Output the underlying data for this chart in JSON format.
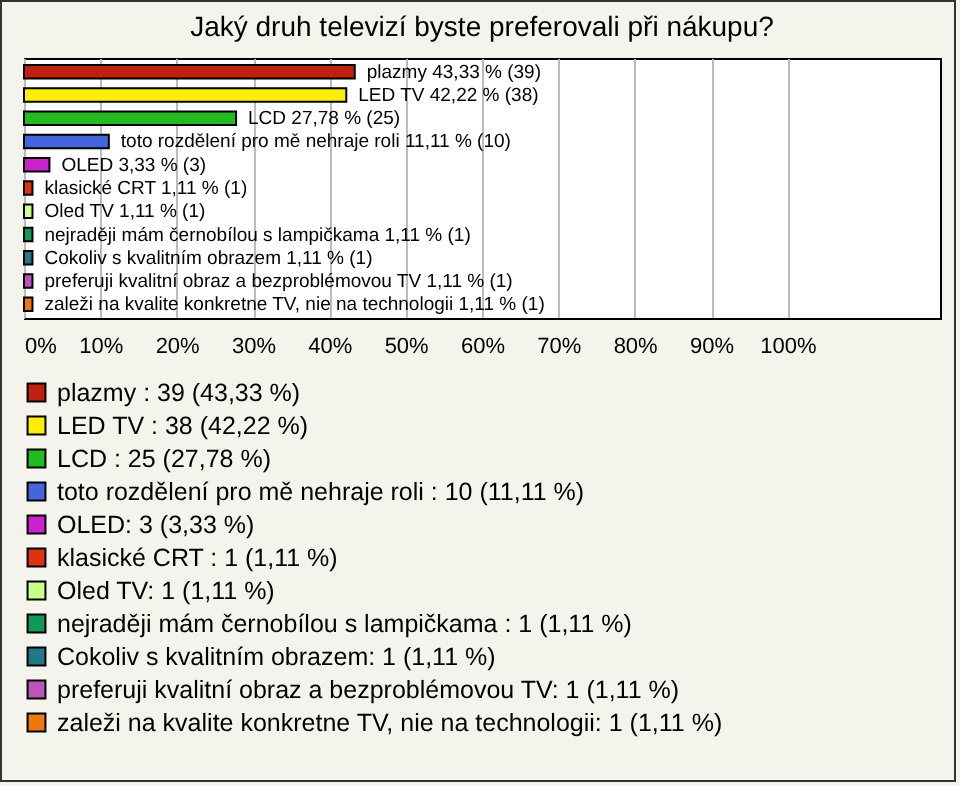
{
  "chart_data": {
    "type": "bar",
    "orientation": "horizontal",
    "title": "Jaký druh televizí byste preferovali při nákupu?",
    "categories": [
      null,
      null,
      null,
      null,
      null,
      null,
      null,
      null,
      null,
      null,
      null
    ],
    "series": [
      {
        "name": "plazmy : 39 (43,33 %)",
        "color": "#c0200f",
        "values": [
          43.33,
          null,
          null,
          null,
          null,
          null,
          null,
          null,
          null,
          null,
          null
        ],
        "value_labels": [
          "plazmy  43,33 % (39)",
          null,
          null,
          null,
          null,
          null,
          null,
          null,
          null,
          null,
          null
        ]
      },
      {
        "name": "LED TV : 38 (42,22 %)",
        "color": "#ffee00",
        "values": [
          null,
          42.22,
          null,
          null,
          null,
          null,
          null,
          null,
          null,
          null,
          null
        ],
        "value_labels": [
          null,
          "LED TV  42,22 % (38)",
          null,
          null,
          null,
          null,
          null,
          null,
          null,
          null,
          null
        ]
      },
      {
        "name": "LCD : 25 (27,78 %)",
        "color": "#22bb22",
        "values": [
          null,
          null,
          27.78,
          null,
          null,
          null,
          null,
          null,
          null,
          null,
          null
        ],
        "value_labels": [
          null,
          null,
          "LCD  27,78 % (25)",
          null,
          null,
          null,
          null,
          null,
          null,
          null,
          null
        ]
      },
      {
        "name": "toto rozdělení pro mě nehraje roli : 10 (11,11 %)",
        "color": "#4466dd",
        "values": [
          null,
          null,
          null,
          11.11,
          null,
          null,
          null,
          null,
          null,
          null,
          null
        ],
        "value_labels": [
          null,
          null,
          null,
          "toto rozdělení pro mě nehraje roli  11,11 % (10)",
          null,
          null,
          null,
          null,
          null,
          null,
          null
        ]
      },
      {
        "name": "OLED: 3 (3,33 %)",
        "color": "#cc22cc",
        "values": [
          null,
          null,
          null,
          null,
          3.33,
          null,
          null,
          null,
          null,
          null,
          null
        ],
        "value_labels": [
          null,
          null,
          null,
          null,
          "OLED 3,33 % (3)",
          null,
          null,
          null,
          null,
          null,
          null
        ]
      },
      {
        "name": "klasické CRT : 1 (1,11 %)",
        "color": "#dd3311",
        "values": [
          null,
          null,
          null,
          null,
          null,
          1.11,
          null,
          null,
          null,
          null,
          null
        ],
        "value_labels": [
          null,
          null,
          null,
          null,
          null,
          "klasické CRT  1,11 % (1)",
          null,
          null,
          null,
          null,
          null
        ]
      },
      {
        "name": "Oled TV: 1 (1,11 %)",
        "color": "#ccff88",
        "values": [
          null,
          null,
          null,
          null,
          null,
          null,
          1.11,
          null,
          null,
          null,
          null
        ],
        "value_labels": [
          null,
          null,
          null,
          null,
          null,
          null,
          "Oled TV 1,11 % (1)",
          null,
          null,
          null,
          null
        ]
      },
      {
        "name": "nejraději mám černobílou s lampičkama : 1 (1,11 %)",
        "color": "#119955",
        "values": [
          null,
          null,
          null,
          null,
          null,
          null,
          null,
          1.11,
          null,
          null,
          null
        ],
        "value_labels": [
          null,
          null,
          null,
          null,
          null,
          null,
          null,
          "nejraději mám černobílou s lampičkama  1,11 % (1)",
          null,
          null,
          null
        ]
      },
      {
        "name": "Cokoliv s kvalitním obrazem: 1 (1,11 %)",
        "color": "#227788",
        "values": [
          null,
          null,
          null,
          null,
          null,
          null,
          null,
          null,
          1.11,
          null,
          null
        ],
        "value_labels": [
          null,
          null,
          null,
          null,
          null,
          null,
          null,
          null,
          "Cokoliv s kvalitním obrazem 1,11 % (1)",
          null,
          null
        ]
      },
      {
        "name": "preferuji kvalitní obraz a bezproblémovou TV: 1 (1,11 %)",
        "color": "#bb55bb",
        "values": [
          null,
          null,
          null,
          null,
          null,
          null,
          null,
          null,
          null,
          1.11,
          null
        ],
        "value_labels": [
          null,
          null,
          null,
          null,
          null,
          null,
          null,
          null,
          null,
          "preferuji kvalitní obraz a bezproblémovou TV 1,11 % (1)",
          null
        ]
      },
      {
        "name": "zaleži na kvalite konkretne TV, nie na technologii: 1 (1,11 %)",
        "color": "#ee7711",
        "values": [
          null,
          null,
          null,
          null,
          null,
          null,
          null,
          null,
          null,
          null,
          1.11
        ],
        "value_labels": [
          null,
          null,
          null,
          null,
          null,
          null,
          null,
          null,
          null,
          null,
          "zaleži na kvalite konkretne TV, nie na technologii 1,11 % (1)"
        ]
      }
    ],
    "xlim": [
      0,
      120
    ],
    "xticks": [
      {
        "value": 0,
        "label": "0%"
      },
      {
        "value": 10,
        "label": "10%"
      },
      {
        "value": 20,
        "label": "20%"
      },
      {
        "value": 30,
        "label": "30%"
      },
      {
        "value": 40,
        "label": "40%"
      },
      {
        "value": 50,
        "label": "50%"
      },
      {
        "value": 60,
        "label": "60%"
      },
      {
        "value": 70,
        "label": "70%"
      },
      {
        "value": 80,
        "label": "80%"
      },
      {
        "value": 90,
        "label": "90%"
      },
      {
        "value": 100,
        "label": "100%"
      }
    ],
    "grid": "x",
    "legend": "bottom",
    "tick_labels": "x"
  }
}
